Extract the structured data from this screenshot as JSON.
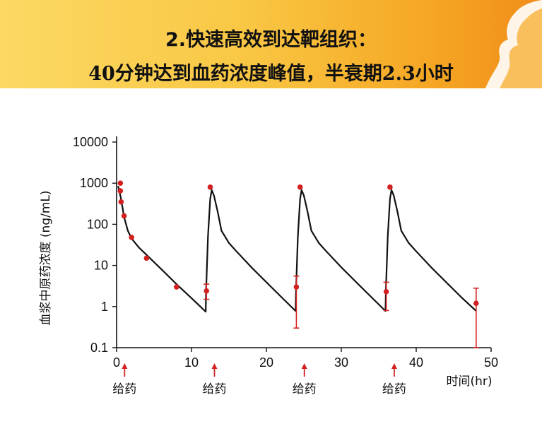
{
  "header": {
    "line1_num": "2.",
    "line1_text": "快速高效到达靶组织：",
    "line2": "40分钟达到血药浓度峰值，半衰期2.3小时"
  },
  "colors": {
    "curve": "#111111",
    "points": "#d42020",
    "arrow": "#d42020"
  },
  "chart_data": {
    "type": "line",
    "title": "",
    "xlabel": "时间(hr)",
    "ylabel": "血浆中原药浓度 (ng/mL)",
    "x_scale": "linear",
    "y_scale": "log",
    "xlim": [
      0,
      50
    ],
    "ylim": [
      0.1,
      10000
    ],
    "x_ticks": [
      0,
      10,
      20,
      30,
      40,
      50
    ],
    "y_ticks": [
      0.1,
      1,
      10,
      100,
      1000,
      10000
    ],
    "y_tick_labels": [
      "0.1",
      "1",
      "10",
      "100",
      "1000",
      "10000"
    ],
    "grid": false,
    "series": [
      {
        "kind": "model-curve",
        "x": [
          0.2,
          0.5,
          0.8,
          1.0,
          1.5,
          2,
          3,
          4,
          6,
          8,
          10,
          11.9,
          11.95,
          12.2,
          12.5,
          12.7,
          13,
          13.5,
          14,
          15,
          16,
          18,
          20,
          22,
          23.9,
          23.95,
          24.2,
          24.5,
          24.7,
          25,
          25.5,
          26,
          27,
          28,
          30,
          32,
          34,
          35.9,
          35.95,
          36.2,
          36.5,
          36.7,
          37,
          37.5,
          38,
          39,
          40,
          42,
          44,
          46,
          48
        ],
        "y": [
          850,
          500,
          250,
          150,
          70,
          45,
          27,
          18,
          8,
          3.5,
          1.6,
          0.75,
          2.5,
          50,
          420,
          680,
          500,
          200,
          70,
          35,
          22,
          9,
          3.9,
          1.7,
          0.78,
          2.5,
          50,
          420,
          680,
          500,
          200,
          70,
          35,
          22,
          9,
          3.9,
          1.7,
          0.78,
          2.5,
          50,
          420,
          680,
          500,
          200,
          70,
          35,
          22,
          9,
          3.9,
          1.7,
          0.78
        ]
      },
      {
        "kind": "observed",
        "points": [
          {
            "x": 0.5,
            "y": 1000
          },
          {
            "x": 0.5,
            "y": 650
          },
          {
            "x": 0.6,
            "y": 350
          },
          {
            "x": 1.0,
            "y": 160
          },
          {
            "x": 2.0,
            "y": 48
          },
          {
            "x": 4.0,
            "y": 15
          },
          {
            "x": 8.0,
            "y": 3.0
          },
          {
            "x": 12.0,
            "y": 2.4,
            "err": [
              1.5,
              3.5
            ]
          },
          {
            "x": 12.5,
            "y": 800
          },
          {
            "x": 24.0,
            "y": 3.0,
            "err": [
              0.3,
              5.5
            ]
          },
          {
            "x": 24.5,
            "y": 800
          },
          {
            "x": 36.0,
            "y": 2.3,
            "err": [
              0.8,
              3.9
            ]
          },
          {
            "x": 36.5,
            "y": 800
          },
          {
            "x": 48.0,
            "y": 1.2,
            "err": [
              0.1,
              2.8
            ]
          }
        ]
      }
    ],
    "dosing": {
      "label": "给药",
      "times": [
        0.5,
        12.5,
        24.5,
        36.5
      ]
    }
  }
}
